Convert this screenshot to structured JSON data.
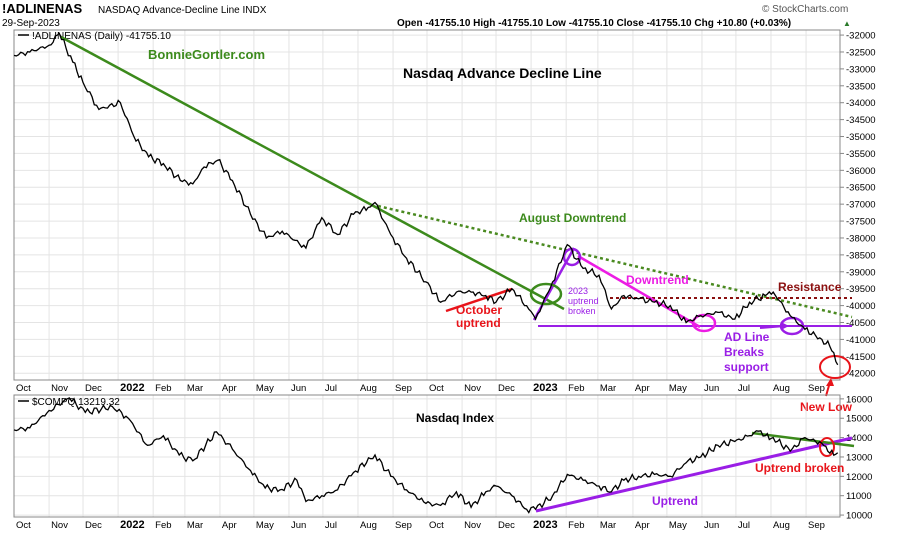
{
  "header": {
    "symbol": "!ADLINENAS",
    "name": "NASDAQ Advance-Decline Line INDX",
    "date": "29-Sep-2023",
    "ohlc": "Open -41755.10  High -41755.10  Low -41755.10  Close -41755.10  Chg +10.80 (+0.03%)",
    "ohlc_arrow": "▲",
    "source": "© StockCharts.com"
  },
  "upper_panel": {
    "legend": "!ADLINENAS (Daily) -41755.10",
    "title": "Nasdaq Advance Decline Line",
    "brand": "BonnieGortler.com",
    "yticks": [
      -32000,
      -32500,
      -33000,
      -33500,
      -34000,
      -34500,
      -35000,
      -35500,
      -36000,
      -36500,
      -37000,
      -37500,
      -38000,
      -38500,
      -39000,
      -39500,
      -40000,
      -40500,
      -41000,
      -41500,
      -42000
    ],
    "ylim": [
      -42200,
      -31850
    ],
    "annotations": {
      "august_downtrend": "August Downtrend",
      "resistance": "Resistance",
      "downtrend": "Downtrend",
      "october_uptrend_1": "October",
      "october_uptrend_2": "uptrend",
      "uptrend_broken_1": "2023",
      "uptrend_broken_2": "uptrend",
      "uptrend_broken_3": "broken",
      "ad_line_1": "AD Line",
      "ad_line_2": "Breaks",
      "ad_line_3": "support",
      "new_low": "New Low"
    }
  },
  "lower_panel": {
    "legend": "$COMPQ 13219.32",
    "title": "Nasdaq Index",
    "yticks": [
      16000,
      15000,
      14000,
      13000,
      12000,
      11000,
      10000
    ],
    "ylim": [
      9900,
      16200
    ],
    "annotations": {
      "uptrend": "Uptrend",
      "uptrend_broken": "Uptrend broken"
    }
  },
  "x_axis": {
    "labels": [
      "Oct",
      "Nov",
      "Dec",
      "2022",
      "Feb",
      "Mar",
      "Apr",
      "May",
      "Jun",
      "Jul",
      "Aug",
      "Sep",
      "Oct",
      "Nov",
      "Dec",
      "2023",
      "Feb",
      "Mar",
      "Apr",
      "May",
      "Jun",
      "Jul",
      "Aug",
      "Sep"
    ],
    "bold": [
      "2022",
      "2023"
    ]
  },
  "colors": {
    "green": "#3c8a1c",
    "green_dotted": "#4a8a20",
    "red": "#e8141a",
    "magenta": "#ec1ce4",
    "purple": "#9a1ee6",
    "dark_red": "#8b1010",
    "line": "#000000"
  },
  "chart_data": [
    {
      "type": "line",
      "title": "Nasdaq Advance Decline Line",
      "series": [
        {
          "name": "!ADLINENAS (Daily)",
          "x": [
            "2021-10-01",
            "2021-10-15",
            "2021-11-01",
            "2021-11-10",
            "2021-11-22",
            "2021-12-01",
            "2021-12-15",
            "2022-01-03",
            "2022-01-15",
            "2022-01-28",
            "2022-02-10",
            "2022-02-25",
            "2022-03-08",
            "2022-03-18",
            "2022-03-30",
            "2022-04-12",
            "2022-04-28",
            "2022-05-12",
            "2022-05-26",
            "2022-06-16",
            "2022-06-30",
            "2022-07-14",
            "2022-07-28",
            "2022-08-10",
            "2022-08-16",
            "2022-08-30",
            "2022-09-13",
            "2022-09-30",
            "2022-10-13",
            "2022-10-27",
            "2022-11-09",
            "2022-11-22",
            "2022-12-01",
            "2022-12-15",
            "2022-12-28",
            "2023-01-05",
            "2023-01-20",
            "2023-02-02",
            "2023-02-16",
            "2023-03-02",
            "2023-03-13",
            "2023-03-24",
            "2023-04-06",
            "2023-04-20",
            "2023-05-04",
            "2023-05-18",
            "2023-05-31",
            "2023-06-15",
            "2023-06-30",
            "2023-07-13",
            "2023-07-27",
            "2023-08-03",
            "2023-08-18",
            "2023-08-31",
            "2023-09-15",
            "2023-09-22",
            "2023-09-29"
          ],
          "values": [
            -32600,
            -32500,
            -32300,
            -31950,
            -32800,
            -33400,
            -34200,
            -34000,
            -35000,
            -35600,
            -35800,
            -36300,
            -36400,
            -35900,
            -35700,
            -36300,
            -37300,
            -38000,
            -37800,
            -38300,
            -37400,
            -37900,
            -37300,
            -37100,
            -36950,
            -37900,
            -38600,
            -39300,
            -39900,
            -39600,
            -39600,
            -39700,
            -39900,
            -39500,
            -40000,
            -40400,
            -39300,
            -38200,
            -38900,
            -39100,
            -40100,
            -39700,
            -39800,
            -39900,
            -40000,
            -40500,
            -40300,
            -40200,
            -40400,
            -39900,
            -39700,
            -39600,
            -40300,
            -40700,
            -41000,
            -41200,
            -41750
          ]
        }
      ],
      "ylim": [
        -42200,
        -31850
      ]
    },
    {
      "type": "line",
      "title": "Nasdaq Index",
      "series": [
        {
          "name": "$COMPQ",
          "x": [
            "2021-10-01",
            "2021-10-15",
            "2021-11-01",
            "2021-11-19",
            "2021-12-03",
            "2021-12-27",
            "2022-01-10",
            "2022-01-27",
            "2022-02-10",
            "2022-02-24",
            "2022-03-08",
            "2022-03-29",
            "2022-04-12",
            "2022-04-28",
            "2022-05-11",
            "2022-05-24",
            "2022-06-08",
            "2022-06-16",
            "2022-06-30",
            "2022-07-14",
            "2022-07-28",
            "2022-08-16",
            "2022-08-30",
            "2022-09-13",
            "2022-09-30",
            "2022-10-13",
            "2022-10-27",
            "2022-11-09",
            "2022-11-22",
            "2022-12-01",
            "2022-12-15",
            "2022-12-28",
            "2023-01-05",
            "2023-01-20",
            "2023-02-02",
            "2023-02-16",
            "2023-03-02",
            "2023-03-13",
            "2023-03-24",
            "2023-04-06",
            "2023-04-20",
            "2023-05-04",
            "2023-05-18",
            "2023-05-31",
            "2023-06-15",
            "2023-06-30",
            "2023-07-13",
            "2023-07-19",
            "2023-07-27",
            "2023-08-03",
            "2023-08-18",
            "2023-08-31",
            "2023-09-15",
            "2023-09-22",
            "2023-09-29"
          ],
          "values": [
            14400,
            14500,
            15400,
            16050,
            15300,
            15600,
            15000,
            13600,
            14100,
            13100,
            12800,
            14300,
            13400,
            12300,
            11400,
            11300,
            11800,
            10700,
            11000,
            11300,
            12200,
            13100,
            12000,
            11300,
            10600,
            10500,
            11200,
            10400,
            11200,
            11500,
            11000,
            10300,
            10300,
            11000,
            12100,
            11800,
            11500,
            11200,
            11800,
            12000,
            12100,
            12000,
            12700,
            13000,
            13600,
            13800,
            14100,
            14350,
            14100,
            14000,
            13300,
            14000,
            13700,
            13200,
            13220
          ]
        }
      ],
      "ylim": [
        9900,
        16200
      ]
    }
  ]
}
